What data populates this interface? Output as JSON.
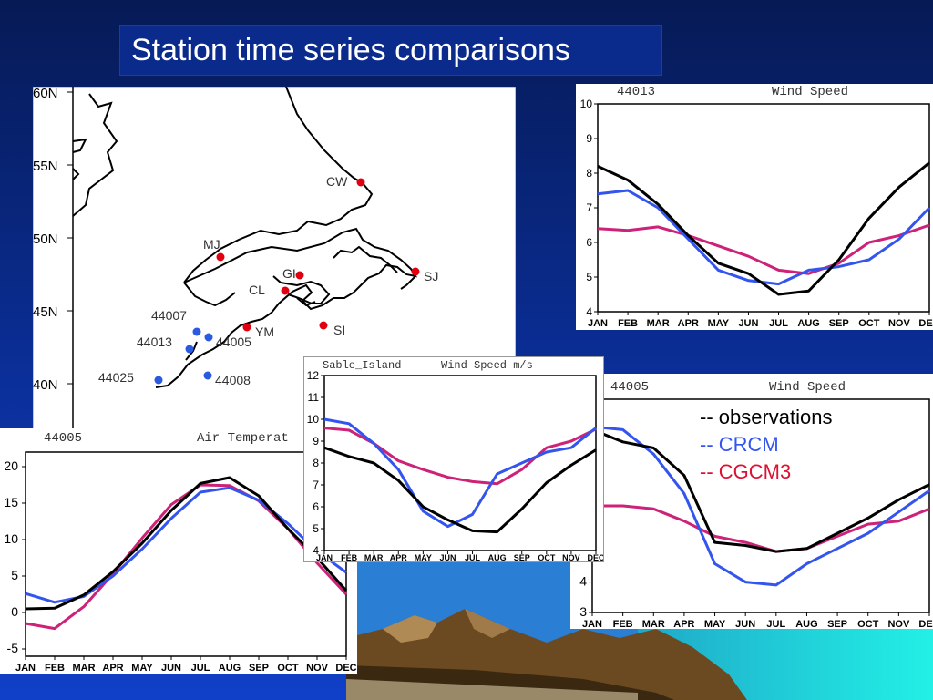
{
  "page": {
    "title": "Station time series comparisons"
  },
  "colors": {
    "observations": "#000000",
    "crcm": "#3355ee",
    "cgcm3": "#cc2277"
  },
  "legend": {
    "observations": "-- observations",
    "crcm": "-- CRCM",
    "cgcm3": "-- CGCM3"
  },
  "map": {
    "lat_labels": [
      "60N",
      "55N",
      "50N",
      "45N",
      "40N"
    ],
    "stations_red": [
      "CW",
      "MJ",
      "GI",
      "CL",
      "SJ",
      "YM",
      "SI"
    ],
    "stations_blue": [
      "44007",
      "44013",
      "44005",
      "44025",
      "44008"
    ]
  },
  "chart_data": [
    {
      "type": "line",
      "title": "44013",
      "variable": "Wind Speed",
      "categories": [
        "JAN",
        "FEB",
        "MAR",
        "APR",
        "MAY",
        "JUN",
        "JUL",
        "AUG",
        "SEP",
        "OCT",
        "NOV",
        "DEC"
      ],
      "ylim": [
        4,
        10
      ],
      "yticks": [
        4,
        5,
        6,
        7,
        8,
        9,
        10
      ],
      "series": [
        {
          "name": "observations",
          "values": [
            8.2,
            7.8,
            7.1,
            6.2,
            5.4,
            5.1,
            4.5,
            4.6,
            5.5,
            6.7,
            7.6,
            8.3
          ]
        },
        {
          "name": "CRCM",
          "values": [
            7.4,
            7.5,
            7.0,
            6.1,
            5.2,
            4.9,
            4.8,
            5.2,
            5.3,
            5.5,
            6.1,
            7.0
          ]
        },
        {
          "name": "CGCM3",
          "values": [
            6.4,
            6.35,
            6.45,
            6.2,
            5.9,
            5.6,
            5.2,
            5.1,
            5.4,
            6.0,
            6.2,
            6.5
          ]
        }
      ]
    },
    {
      "type": "line",
      "title": "44005",
      "variable": "Wind Speed",
      "categories": [
        "JAN",
        "FEB",
        "MAR",
        "APR",
        "MAY",
        "JUN",
        "JUL",
        "AUG",
        "SEP",
        "OCT",
        "NOV",
        "DEC"
      ],
      "ylim": [
        3,
        10
      ],
      "yticks": [
        3,
        4
      ],
      "series": [
        {
          "name": "observations",
          "values": [
            9.0,
            8.6,
            8.4,
            7.5,
            5.3,
            5.2,
            5.0,
            5.1,
            5.6,
            6.1,
            6.7,
            7.2
          ]
        },
        {
          "name": "CRCM",
          "values": [
            9.1,
            9.0,
            8.2,
            6.9,
            4.6,
            4.0,
            3.9,
            4.6,
            5.1,
            5.6,
            6.3,
            7.0
          ]
        },
        {
          "name": "CGCM3",
          "values": [
            6.5,
            6.5,
            6.4,
            6.0,
            5.5,
            5.3,
            5.0,
            5.1,
            5.5,
            5.9,
            6.0,
            6.4
          ]
        }
      ]
    },
    {
      "type": "line",
      "title": "44005",
      "variable": "Air Temperat",
      "categories": [
        "JAN",
        "FEB",
        "MAR",
        "APR",
        "MAY",
        "JUN",
        "JUL",
        "AUG",
        "SEP",
        "OCT",
        "NOV",
        "DEC"
      ],
      "ylim": [
        -6,
        22
      ],
      "yticks": [
        -5,
        0,
        5,
        10,
        15,
        20
      ],
      "series": [
        {
          "name": "observations",
          "values": [
            0.5,
            0.6,
            2.4,
            5.6,
            9.5,
            14.0,
            17.7,
            18.5,
            16.0,
            11.5,
            7.5,
            3.0
          ]
        },
        {
          "name": "CRCM",
          "values": [
            2.6,
            1.4,
            2.2,
            5.0,
            8.7,
            12.9,
            16.5,
            17.1,
            15.4,
            12.2,
            8.4,
            5.5
          ]
        },
        {
          "name": "CGCM3",
          "values": [
            -1.5,
            -2.2,
            0.8,
            5.3,
            10.2,
            14.8,
            17.5,
            17.4,
            15.3,
            11.5,
            6.8,
            2.5
          ]
        }
      ]
    },
    {
      "type": "line",
      "title": "Sable_Island",
      "variable": "Wind Speed m/s",
      "categories": [
        "JAN",
        "FEB",
        "MAR",
        "APR",
        "MAY",
        "JUN",
        "JUL",
        "AUG",
        "SEP",
        "OCT",
        "NOV",
        "DEC"
      ],
      "ylim": [
        4,
        12
      ],
      "yticks": [
        4,
        5,
        6,
        7,
        8,
        9,
        10,
        11,
        12
      ],
      "series": [
        {
          "name": "observations",
          "values": [
            8.7,
            8.3,
            8.0,
            7.2,
            6.0,
            5.4,
            4.9,
            4.85,
            5.9,
            7.1,
            7.9,
            8.6
          ]
        },
        {
          "name": "CRCM",
          "values": [
            10.0,
            9.8,
            8.9,
            7.7,
            5.8,
            5.1,
            5.65,
            7.5,
            8.0,
            8.5,
            8.7,
            9.6
          ]
        },
        {
          "name": "CGCM3",
          "values": [
            9.6,
            9.5,
            8.9,
            8.1,
            7.7,
            7.35,
            7.15,
            7.05,
            7.7,
            8.7,
            9.0,
            9.55
          ]
        }
      ]
    }
  ]
}
